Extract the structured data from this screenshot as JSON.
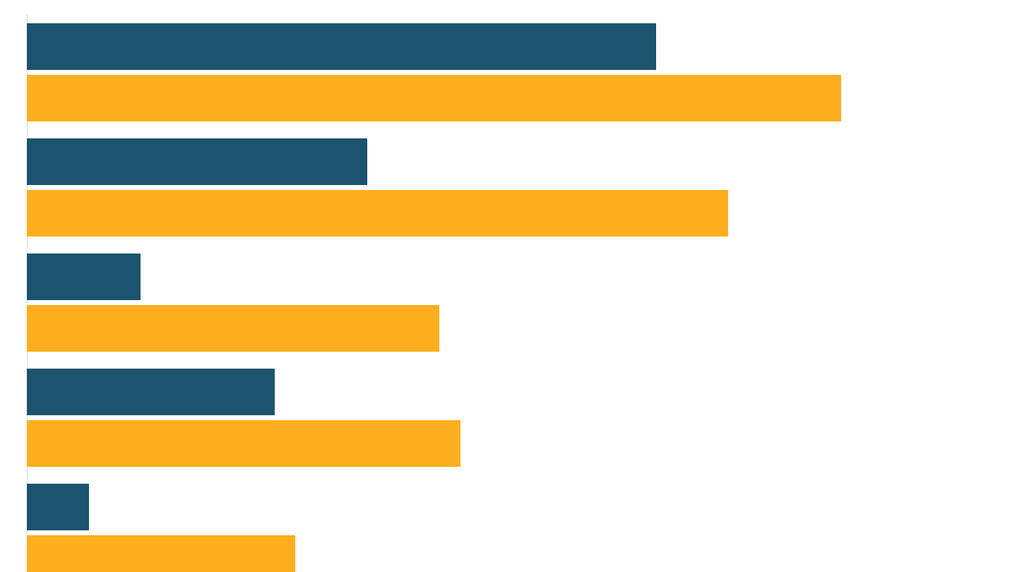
{
  "chart_data": {
    "type": "bar",
    "orientation": "horizontal",
    "categories": [
      null,
      null,
      null,
      null,
      null
    ],
    "series": [
      {
        "color": "#1c536e",
        "values": [
          891,
          482,
          161,
          351,
          88
        ]
      },
      {
        "color": "#fdae1e",
        "values": [
          1153,
          993,
          584,
          614,
          380
        ]
      }
    ],
    "xlim": [
      0,
      1402
    ]
  }
}
